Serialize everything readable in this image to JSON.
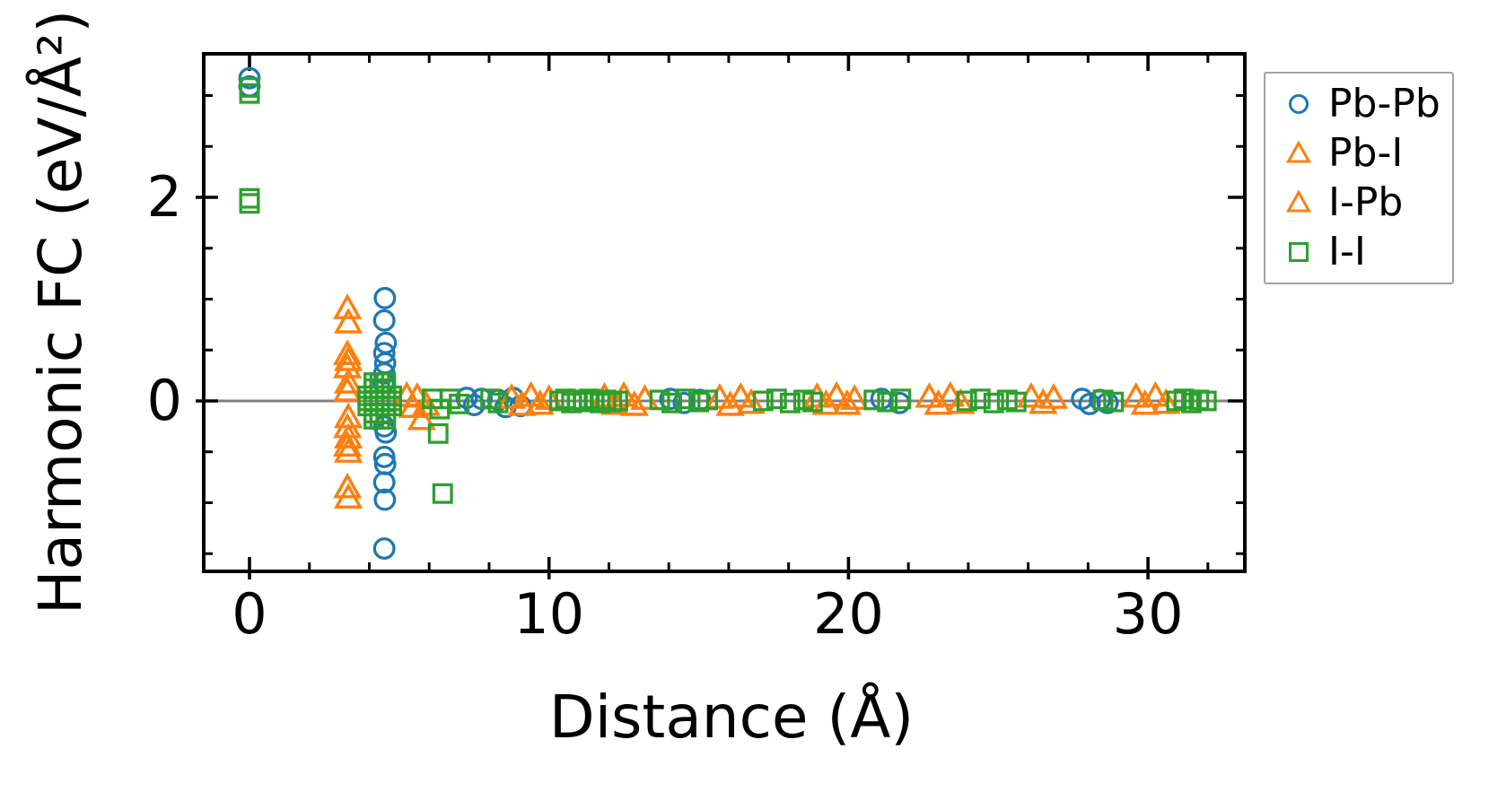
{
  "chart_data": {
    "type": "scatter",
    "title": "",
    "xlabel": "Distance (Å)",
    "ylabel": "Harmonic FC (eV/Å²)",
    "xlim": [
      -1.53,
      33.23
    ],
    "ylim": [
      -1.67,
      3.41
    ],
    "xticks": {
      "major": [
        0,
        10,
        20,
        30
      ],
      "minor": [
        2,
        4,
        6,
        8,
        12,
        14,
        16,
        18,
        22,
        24,
        26,
        28,
        32
      ]
    },
    "yticks": {
      "major": [
        0,
        2
      ],
      "minor": [
        -1.5,
        -1.0,
        -0.5,
        0.5,
        1.0,
        1.5,
        2.5,
        3.0
      ]
    },
    "grid": false,
    "zero_line": {
      "y": 0,
      "color": "#808080"
    },
    "legend_position": "outside-right-top",
    "series": [
      {
        "name": "Pb-Pb",
        "marker": "circle",
        "color": "#1f77b4",
        "points": [
          [
            0,
            3.17
          ],
          [
            0,
            3.09
          ],
          [
            4.52,
            1.01
          ],
          [
            4.5,
            0.79
          ],
          [
            4.55,
            0.57
          ],
          [
            4.5,
            0.47
          ],
          [
            4.53,
            0.37
          ],
          [
            4.5,
            0.27
          ],
          [
            4.48,
            0.18
          ],
          [
            4.5,
            -0.25
          ],
          [
            4.55,
            -0.31
          ],
          [
            4.5,
            -0.55
          ],
          [
            4.53,
            -0.62
          ],
          [
            4.5,
            -0.8
          ],
          [
            4.52,
            -0.97
          ],
          [
            4.5,
            -1.45
          ],
          [
            7.25,
            0.03
          ],
          [
            7.5,
            -0.04
          ],
          [
            7.75,
            0.02
          ],
          [
            8.3,
            0.01
          ],
          [
            8.55,
            -0.06
          ],
          [
            8.8,
            0.03
          ],
          [
            9.05,
            -0.05
          ],
          [
            14.05,
            0.02
          ],
          [
            14.5,
            -0.02
          ],
          [
            15.05,
            0.01
          ],
          [
            21.1,
            0.02
          ],
          [
            21.7,
            -0.02
          ],
          [
            27.8,
            0.02
          ],
          [
            28.05,
            -0.03
          ],
          [
            28.4,
            0.01
          ],
          [
            28.65,
            -0.02
          ]
        ]
      },
      {
        "name": "Pb-I",
        "marker": "triangle",
        "color": "#ff7f0e",
        "points": [
          [
            3.27,
            0.91
          ],
          [
            3.3,
            0.77
          ],
          [
            3.27,
            0.46
          ],
          [
            3.3,
            0.4
          ],
          [
            3.27,
            0.33
          ],
          [
            3.3,
            0.18
          ],
          [
            3.27,
            0.1
          ],
          [
            3.3,
            -0.16
          ],
          [
            3.27,
            -0.26
          ],
          [
            3.3,
            -0.36
          ],
          [
            3.27,
            -0.44
          ],
          [
            3.3,
            -0.5
          ],
          [
            3.27,
            -0.85
          ],
          [
            3.3,
            -0.95
          ],
          [
            5.25,
            0.05
          ],
          [
            5.45,
            -0.06
          ],
          [
            5.6,
            0.04
          ],
          [
            5.75,
            -0.18
          ],
          [
            5.9,
            -0.04
          ],
          [
            8.75,
            0.03
          ],
          [
            9.1,
            -0.04
          ],
          [
            9.4,
            0.05
          ],
          [
            9.7,
            -0.03
          ],
          [
            10.0,
            0.02
          ],
          [
            11.85,
            0.04
          ],
          [
            12.2,
            -0.03
          ],
          [
            12.5,
            0.05
          ],
          [
            12.85,
            -0.04
          ],
          [
            13.2,
            0.02
          ],
          [
            15.7,
            0.03
          ],
          [
            16.05,
            -0.04
          ],
          [
            16.4,
            0.04
          ],
          [
            16.75,
            -0.02
          ],
          [
            18.95,
            0.04
          ],
          [
            19.25,
            -0.03
          ],
          [
            19.6,
            0.05
          ],
          [
            19.95,
            -0.03
          ],
          [
            20.2,
            0.02
          ],
          [
            22.7,
            0.04
          ],
          [
            23.0,
            -0.03
          ],
          [
            23.4,
            0.05
          ],
          [
            23.75,
            -0.02
          ],
          [
            26.1,
            0.04
          ],
          [
            26.5,
            -0.02
          ],
          [
            26.85,
            0.03
          ],
          [
            29.6,
            0.04
          ],
          [
            29.9,
            -0.03
          ],
          [
            30.25,
            0.05
          ],
          [
            30.6,
            -0.02
          ]
        ]
      },
      {
        "name": "I-Pb",
        "marker": "triangle",
        "color": "#ff7f0e",
        "points": [
          [
            3.27,
            0.91
          ],
          [
            3.3,
            0.77
          ],
          [
            3.27,
            0.46
          ],
          [
            3.3,
            0.4
          ],
          [
            3.27,
            0.33
          ],
          [
            3.3,
            0.18
          ],
          [
            3.27,
            0.1
          ],
          [
            3.3,
            -0.16
          ],
          [
            3.27,
            -0.26
          ],
          [
            3.3,
            -0.36
          ],
          [
            3.27,
            -0.44
          ],
          [
            3.3,
            -0.5
          ],
          [
            3.27,
            -0.85
          ],
          [
            3.3,
            -0.95
          ],
          [
            5.25,
            0.05
          ],
          [
            5.45,
            -0.06
          ],
          [
            5.6,
            0.04
          ],
          [
            5.75,
            -0.18
          ],
          [
            5.9,
            -0.04
          ],
          [
            8.75,
            0.03
          ],
          [
            9.1,
            -0.04
          ],
          [
            9.4,
            0.05
          ],
          [
            9.7,
            -0.03
          ],
          [
            10.0,
            0.02
          ],
          [
            11.85,
            0.04
          ],
          [
            12.2,
            -0.03
          ],
          [
            12.5,
            0.05
          ],
          [
            12.85,
            -0.04
          ],
          [
            13.2,
            0.02
          ],
          [
            15.7,
            0.03
          ],
          [
            16.05,
            -0.04
          ],
          [
            16.4,
            0.04
          ],
          [
            16.75,
            -0.02
          ],
          [
            18.95,
            0.04
          ],
          [
            19.25,
            -0.03
          ],
          [
            19.6,
            0.05
          ],
          [
            19.95,
            -0.03
          ],
          [
            20.2,
            0.02
          ],
          [
            22.7,
            0.04
          ],
          [
            23.0,
            -0.03
          ],
          [
            23.4,
            0.05
          ],
          [
            23.75,
            -0.02
          ],
          [
            26.1,
            0.04
          ],
          [
            26.5,
            -0.02
          ],
          [
            26.85,
            0.03
          ],
          [
            29.6,
            0.04
          ],
          [
            29.9,
            -0.03
          ],
          [
            30.25,
            0.05
          ],
          [
            30.6,
            -0.02
          ]
        ]
      },
      {
        "name": "I-I",
        "marker": "square",
        "color": "#2ca02c",
        "points": [
          [
            0,
            3.08
          ],
          [
            0,
            3.02
          ],
          [
            0,
            1.99
          ],
          [
            0,
            1.94
          ],
          [
            3.95,
            -0.05
          ],
          [
            3.95,
            0
          ],
          [
            3.95,
            0.05
          ],
          [
            4.15,
            -0.05
          ],
          [
            4.15,
            0
          ],
          [
            4.15,
            0.05
          ],
          [
            4.35,
            -0.05
          ],
          [
            4.35,
            0
          ],
          [
            4.35,
            0.05
          ],
          [
            4.55,
            -0.05
          ],
          [
            4.55,
            0
          ],
          [
            4.55,
            0.05
          ],
          [
            4.75,
            -0.05
          ],
          [
            4.75,
            0
          ],
          [
            4.75,
            0.05
          ],
          [
            4.15,
            -0.18
          ],
          [
            4.15,
            -0.12
          ],
          [
            4.15,
            0.12
          ],
          [
            4.15,
            0.18
          ],
          [
            4.35,
            -0.18
          ],
          [
            4.35,
            -0.12
          ],
          [
            4.35,
            0.12
          ],
          [
            4.35,
            0.18
          ],
          [
            4.55,
            -0.18
          ],
          [
            4.55,
            -0.12
          ],
          [
            4.55,
            0.12
          ],
          [
            4.55,
            0.18
          ],
          [
            6.1,
            0.02
          ],
          [
            6.35,
            -0.08
          ],
          [
            6.3,
            -0.32
          ],
          [
            6.45,
            -0.91
          ],
          [
            6.7,
            0.02
          ],
          [
            7.0,
            -0.03
          ],
          [
            8.05,
            0.02
          ],
          [
            8.3,
            -0.02
          ],
          [
            10.35,
            0
          ],
          [
            10.55,
            0.02
          ],
          [
            10.75,
            -0.02
          ],
          [
            10.95,
            0.01
          ],
          [
            11.15,
            -0.01
          ],
          [
            11.35,
            0.02
          ],
          [
            11.5,
            0
          ],
          [
            11.7,
            -0.02
          ],
          [
            11.9,
            0.01
          ],
          [
            12.1,
            -0.01
          ],
          [
            12.3,
            0
          ],
          [
            13.7,
            0.01
          ],
          [
            14.1,
            -0.02
          ],
          [
            14.55,
            0.02
          ],
          [
            15.0,
            -0.01
          ],
          [
            15.3,
            0.01
          ],
          [
            17.15,
            0
          ],
          [
            17.6,
            0.02
          ],
          [
            18.05,
            -0.02
          ],
          [
            18.5,
            0.01
          ],
          [
            18.8,
            -0.01
          ],
          [
            20.85,
            0.01
          ],
          [
            21.3,
            -0.01
          ],
          [
            21.75,
            0.02
          ],
          [
            23.95,
            0
          ],
          [
            24.4,
            0.02
          ],
          [
            24.85,
            -0.02
          ],
          [
            25.3,
            0.01
          ],
          [
            25.6,
            -0.01
          ],
          [
            28.5,
            0.01
          ],
          [
            28.85,
            -0.01
          ],
          [
            30.95,
            0
          ],
          [
            31.2,
            0.02
          ],
          [
            31.45,
            -0.02
          ],
          [
            31.7,
            0.01
          ],
          [
            31.95,
            0
          ]
        ]
      }
    ]
  }
}
